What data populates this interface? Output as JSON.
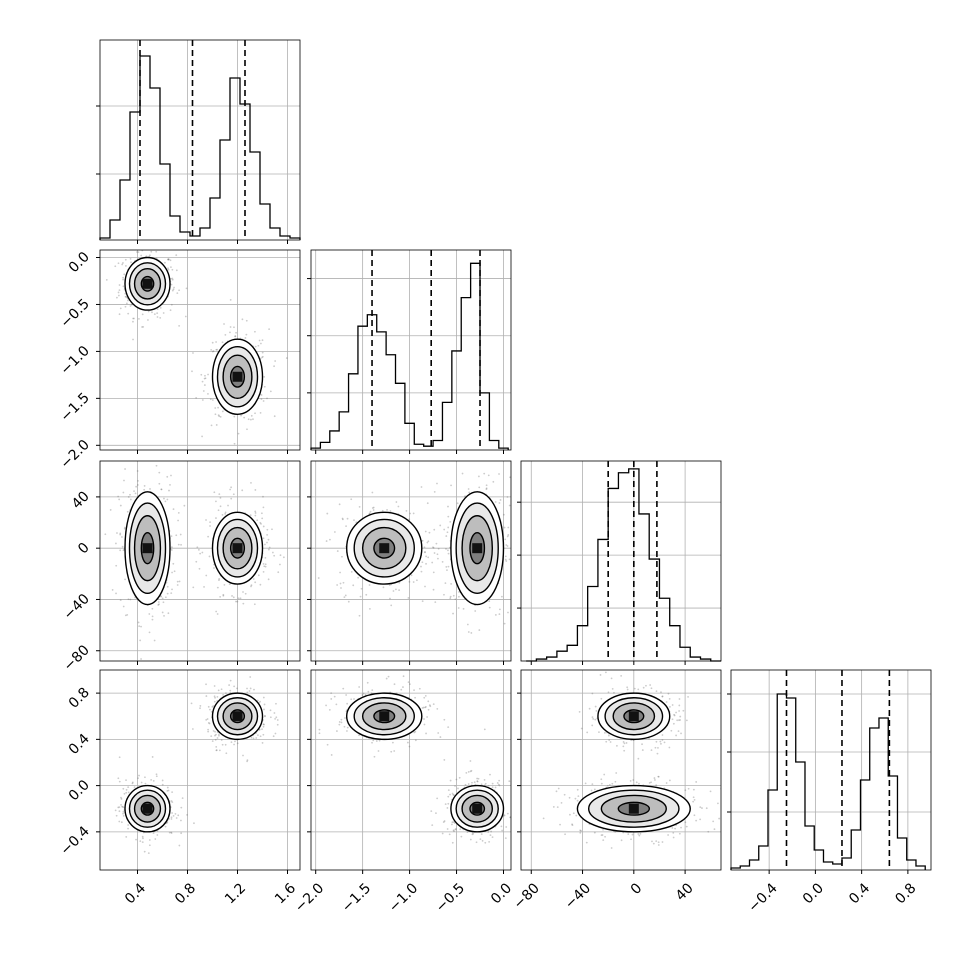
{
  "chart_data": {
    "type": "corner",
    "n_params": 4,
    "colors": {
      "line": "#000000",
      "grid": "#b0b0b0",
      "fill": "#ffffff"
    },
    "grid": true,
    "params": [
      {
        "range": [
          0.1,
          1.7
        ],
        "ticks": [
          0.4,
          0.8,
          1.2,
          1.6
        ],
        "tick_labels": [
          "0.4",
          "0.8",
          "1.2",
          "1.6"
        ]
      },
      {
        "range": [
          -2.05,
          0.08
        ],
        "ticks": [
          -2.0,
          -1.5,
          -1.0,
          -0.5,
          0.0
        ],
        "tick_labels": [
          "−2.0",
          "−1.5",
          "−1.0",
          "−0.5",
          "0.0"
        ]
      },
      {
        "range": [
          -88,
          68
        ],
        "ticks": [
          -80,
          -40,
          0,
          40
        ],
        "tick_labels": [
          "−80",
          "−40",
          "0",
          "40"
        ]
      },
      {
        "range": [
          -0.73,
          1.0
        ],
        "ticks": [
          -0.4,
          0.0,
          0.4,
          0.8
        ],
        "tick_labels": [
          "−0.4",
          "0.0",
          "0.4",
          "0.8"
        ]
      }
    ],
    "histograms": [
      {
        "bins": [
          0.1,
          0.18,
          0.26,
          0.34,
          0.42,
          0.5,
          0.58,
          0.66,
          0.74,
          0.82,
          0.9,
          0.98,
          1.06,
          1.14,
          1.22,
          1.3,
          1.38,
          1.46,
          1.54,
          1.62,
          1.7
        ],
        "counts": [
          0.01,
          0.1,
          0.3,
          0.64,
          0.92,
          0.76,
          0.38,
          0.12,
          0.04,
          0.02,
          0.06,
          0.21,
          0.5,
          0.81,
          0.68,
          0.44,
          0.18,
          0.06,
          0.02,
          0.01
        ],
        "ymax": 1.0,
        "yticks": [
          0.33,
          0.67
        ],
        "quantiles": [
          0.42,
          0.84,
          1.26
        ]
      },
      {
        "bins": [
          -2.05,
          -1.95,
          -1.85,
          -1.75,
          -1.65,
          -1.55,
          -1.45,
          -1.35,
          -1.25,
          -1.15,
          -1.05,
          -0.95,
          -0.85,
          -0.75,
          -0.65,
          -0.55,
          -0.45,
          -0.35,
          -0.25,
          -0.15,
          -0.05,
          0.05
        ],
        "counts": [
          0.01,
          0.04,
          0.1,
          0.2,
          0.4,
          0.65,
          0.71,
          0.62,
          0.5,
          0.35,
          0.14,
          0.03,
          0.02,
          0.05,
          0.25,
          0.52,
          0.8,
          0.98,
          0.3,
          0.05,
          0.01
        ],
        "ymax": 1.05,
        "yticks": [
          0.3,
          0.6,
          0.9
        ],
        "quantiles": [
          -1.4,
          -0.77,
          -0.25
        ]
      },
      {
        "bins": [
          -84,
          -76,
          -68,
          -60,
          -52,
          -44,
          -36,
          -28,
          -20,
          -12,
          -4,
          4,
          12,
          20,
          28,
          36,
          44,
          52,
          60,
          68
        ],
        "counts": [
          0.0,
          0.01,
          0.02,
          0.05,
          0.08,
          0.18,
          0.38,
          0.62,
          0.88,
          0.96,
          0.98,
          0.75,
          0.52,
          0.32,
          0.18,
          0.07,
          0.02,
          0.01,
          0.0
        ],
        "ymax": 1.02,
        "yticks": [
          0.27,
          0.54,
          0.81
        ],
        "quantiles": [
          -20,
          0,
          18
        ]
      },
      {
        "bins": [
          -0.73,
          -0.65,
          -0.57,
          -0.49,
          -0.41,
          -0.33,
          -0.25,
          -0.17,
          -0.09,
          -0.01,
          0.07,
          0.15,
          0.23,
          0.31,
          0.39,
          0.47,
          0.55,
          0.63,
          0.71,
          0.79,
          0.87,
          0.95
        ],
        "counts": [
          0.01,
          0.02,
          0.05,
          0.12,
          0.4,
          0.88,
          0.86,
          0.54,
          0.22,
          0.1,
          0.04,
          0.03,
          0.06,
          0.2,
          0.45,
          0.71,
          0.76,
          0.47,
          0.16,
          0.05,
          0.02
        ],
        "ymax": 1.0,
        "yticks": [
          0.29,
          0.59,
          0.88
        ],
        "quantiles": [
          -0.25,
          0.23,
          0.64
        ]
      }
    ],
    "clusters": [
      {
        "center": [
          0.48,
          -0.28,
          0.0,
          -0.2
        ],
        "sd": [
          0.09,
          0.14,
          22,
          0.1
        ],
        "weight": 0.5
      },
      {
        "center": [
          1.2,
          -1.27,
          0.0,
          0.6
        ],
        "sd": [
          0.1,
          0.2,
          14,
          0.1
        ],
        "weight": 0.5
      }
    ],
    "scatter_points_per_panel": 700
  }
}
